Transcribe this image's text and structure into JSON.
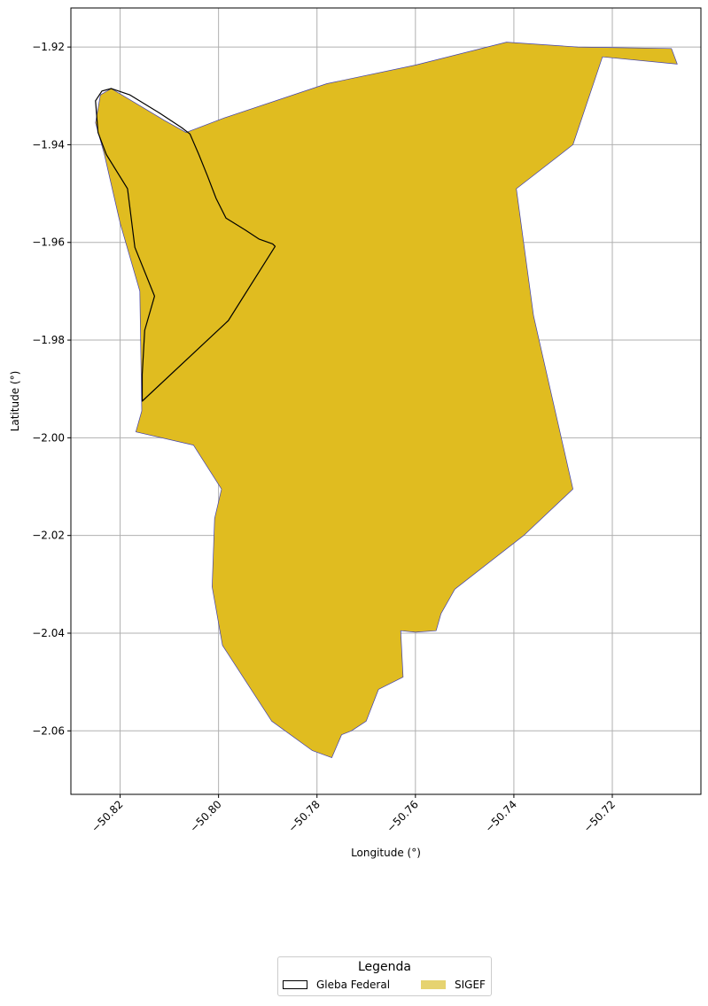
{
  "chart_data": {
    "type": "map",
    "xlabel": "Longitude (°)",
    "ylabel": "Latitude (°)",
    "xlim": [
      -50.83,
      -50.702
    ],
    "ylim": [
      -2.073,
      -1.912
    ],
    "xticks": [
      -50.82,
      -50.8,
      -50.78,
      -50.76,
      -50.74,
      -50.72
    ],
    "xtick_labels": [
      "−50.82",
      "−50.80",
      "−50.78",
      "−50.76",
      "−50.74",
      "−50.72"
    ],
    "yticks": [
      -1.92,
      -1.94,
      -1.96,
      -1.98,
      -2.0,
      -2.02,
      -2.04,
      -2.06
    ],
    "ytick_labels": [
      "−1.92",
      "−1.94",
      "−1.96",
      "−1.98",
      "−2.00",
      "−2.02",
      "−2.04",
      "−2.06"
    ],
    "grid": true,
    "xtick_rotation_deg": 45,
    "colors": {
      "sigef_fill": "#E0BC20",
      "sigef_edge": "#4040B0",
      "gleba_edge": "#000000",
      "grid": "#b0b0b0"
    },
    "layers": [
      {
        "name": "SIGEF",
        "style": "filled",
        "coords": [
          [
            -50.8066,
            -1.9375
          ],
          [
            -50.7988,
            -1.9345
          ],
          [
            -50.778,
            -1.9275
          ],
          [
            -50.76,
            -1.9237
          ],
          [
            -50.7415,
            -1.919
          ],
          [
            -50.727,
            -1.92
          ],
          [
            -50.708,
            -1.9203
          ],
          [
            -50.7068,
            -1.9235
          ],
          [
            -50.722,
            -1.922
          ],
          [
            -50.728,
            -1.94
          ],
          [
            -50.7395,
            -1.949
          ],
          [
            -50.736,
            -1.975
          ],
          [
            -50.728,
            -2.0105
          ],
          [
            -50.738,
            -2.02
          ],
          [
            -50.752,
            -2.031
          ],
          [
            -50.7548,
            -2.036
          ],
          [
            -50.7558,
            -2.0395
          ],
          [
            -50.76,
            -2.0398
          ],
          [
            -50.763,
            -2.0395
          ],
          [
            -50.7625,
            -2.049
          ],
          [
            -50.7675,
            -2.0515
          ],
          [
            -50.77,
            -2.058
          ],
          [
            -50.773,
            -2.06
          ],
          [
            -50.775,
            -2.0608
          ],
          [
            -50.777,
            -2.0655
          ],
          [
            -50.781,
            -2.064
          ],
          [
            -50.7892,
            -2.058
          ],
          [
            -50.7992,
            -2.0425
          ],
          [
            -50.8013,
            -2.0305
          ],
          [
            -50.8008,
            -2.0165
          ],
          [
            -50.7994,
            -2.0105
          ],
          [
            -50.8051,
            -2.0015
          ],
          [
            -50.8168,
            -1.9988
          ],
          [
            -50.8156,
            -1.9945
          ],
          [
            -50.816,
            -1.97
          ],
          [
            -50.82,
            -1.956
          ],
          [
            -50.8232,
            -1.942
          ],
          [
            -50.825,
            -1.9355
          ],
          [
            -50.824,
            -1.9298
          ],
          [
            -50.8218,
            -1.9285
          ],
          [
            -50.816,
            -1.932
          ],
          [
            -50.811,
            -1.935
          ]
        ]
      },
      {
        "name": "Gleba Federal",
        "style": "outline",
        "coords": [
          [
            -50.825,
            -1.931
          ],
          [
            -50.8237,
            -1.929
          ],
          [
            -50.8218,
            -1.9285
          ],
          [
            -50.818,
            -1.9298
          ],
          [
            -50.812,
            -1.9335
          ],
          [
            -50.8075,
            -1.9365
          ],
          [
            -50.8058,
            -1.9378
          ],
          [
            -50.804,
            -1.942
          ],
          [
            -50.8022,
            -1.9465
          ],
          [
            -50.8005,
            -1.951
          ],
          [
            -50.7985,
            -1.955
          ],
          [
            -50.7945,
            -1.9575
          ],
          [
            -50.7918,
            -1.9593
          ],
          [
            -50.789,
            -1.9603
          ],
          [
            -50.7885,
            -1.9608
          ],
          [
            -50.798,
            -1.976
          ],
          [
            -50.8155,
            -1.9925
          ],
          [
            -50.8155,
            -1.987
          ],
          [
            -50.815,
            -1.978
          ],
          [
            -50.813,
            -1.971
          ],
          [
            -50.817,
            -1.961
          ],
          [
            -50.8185,
            -1.949
          ],
          [
            -50.8228,
            -1.942
          ],
          [
            -50.8245,
            -1.9375
          ]
        ]
      }
    ]
  },
  "legend": {
    "title": "Legenda",
    "entries": [
      {
        "label": "Gleba Federal"
      },
      {
        "label": "SIGEF"
      }
    ]
  }
}
